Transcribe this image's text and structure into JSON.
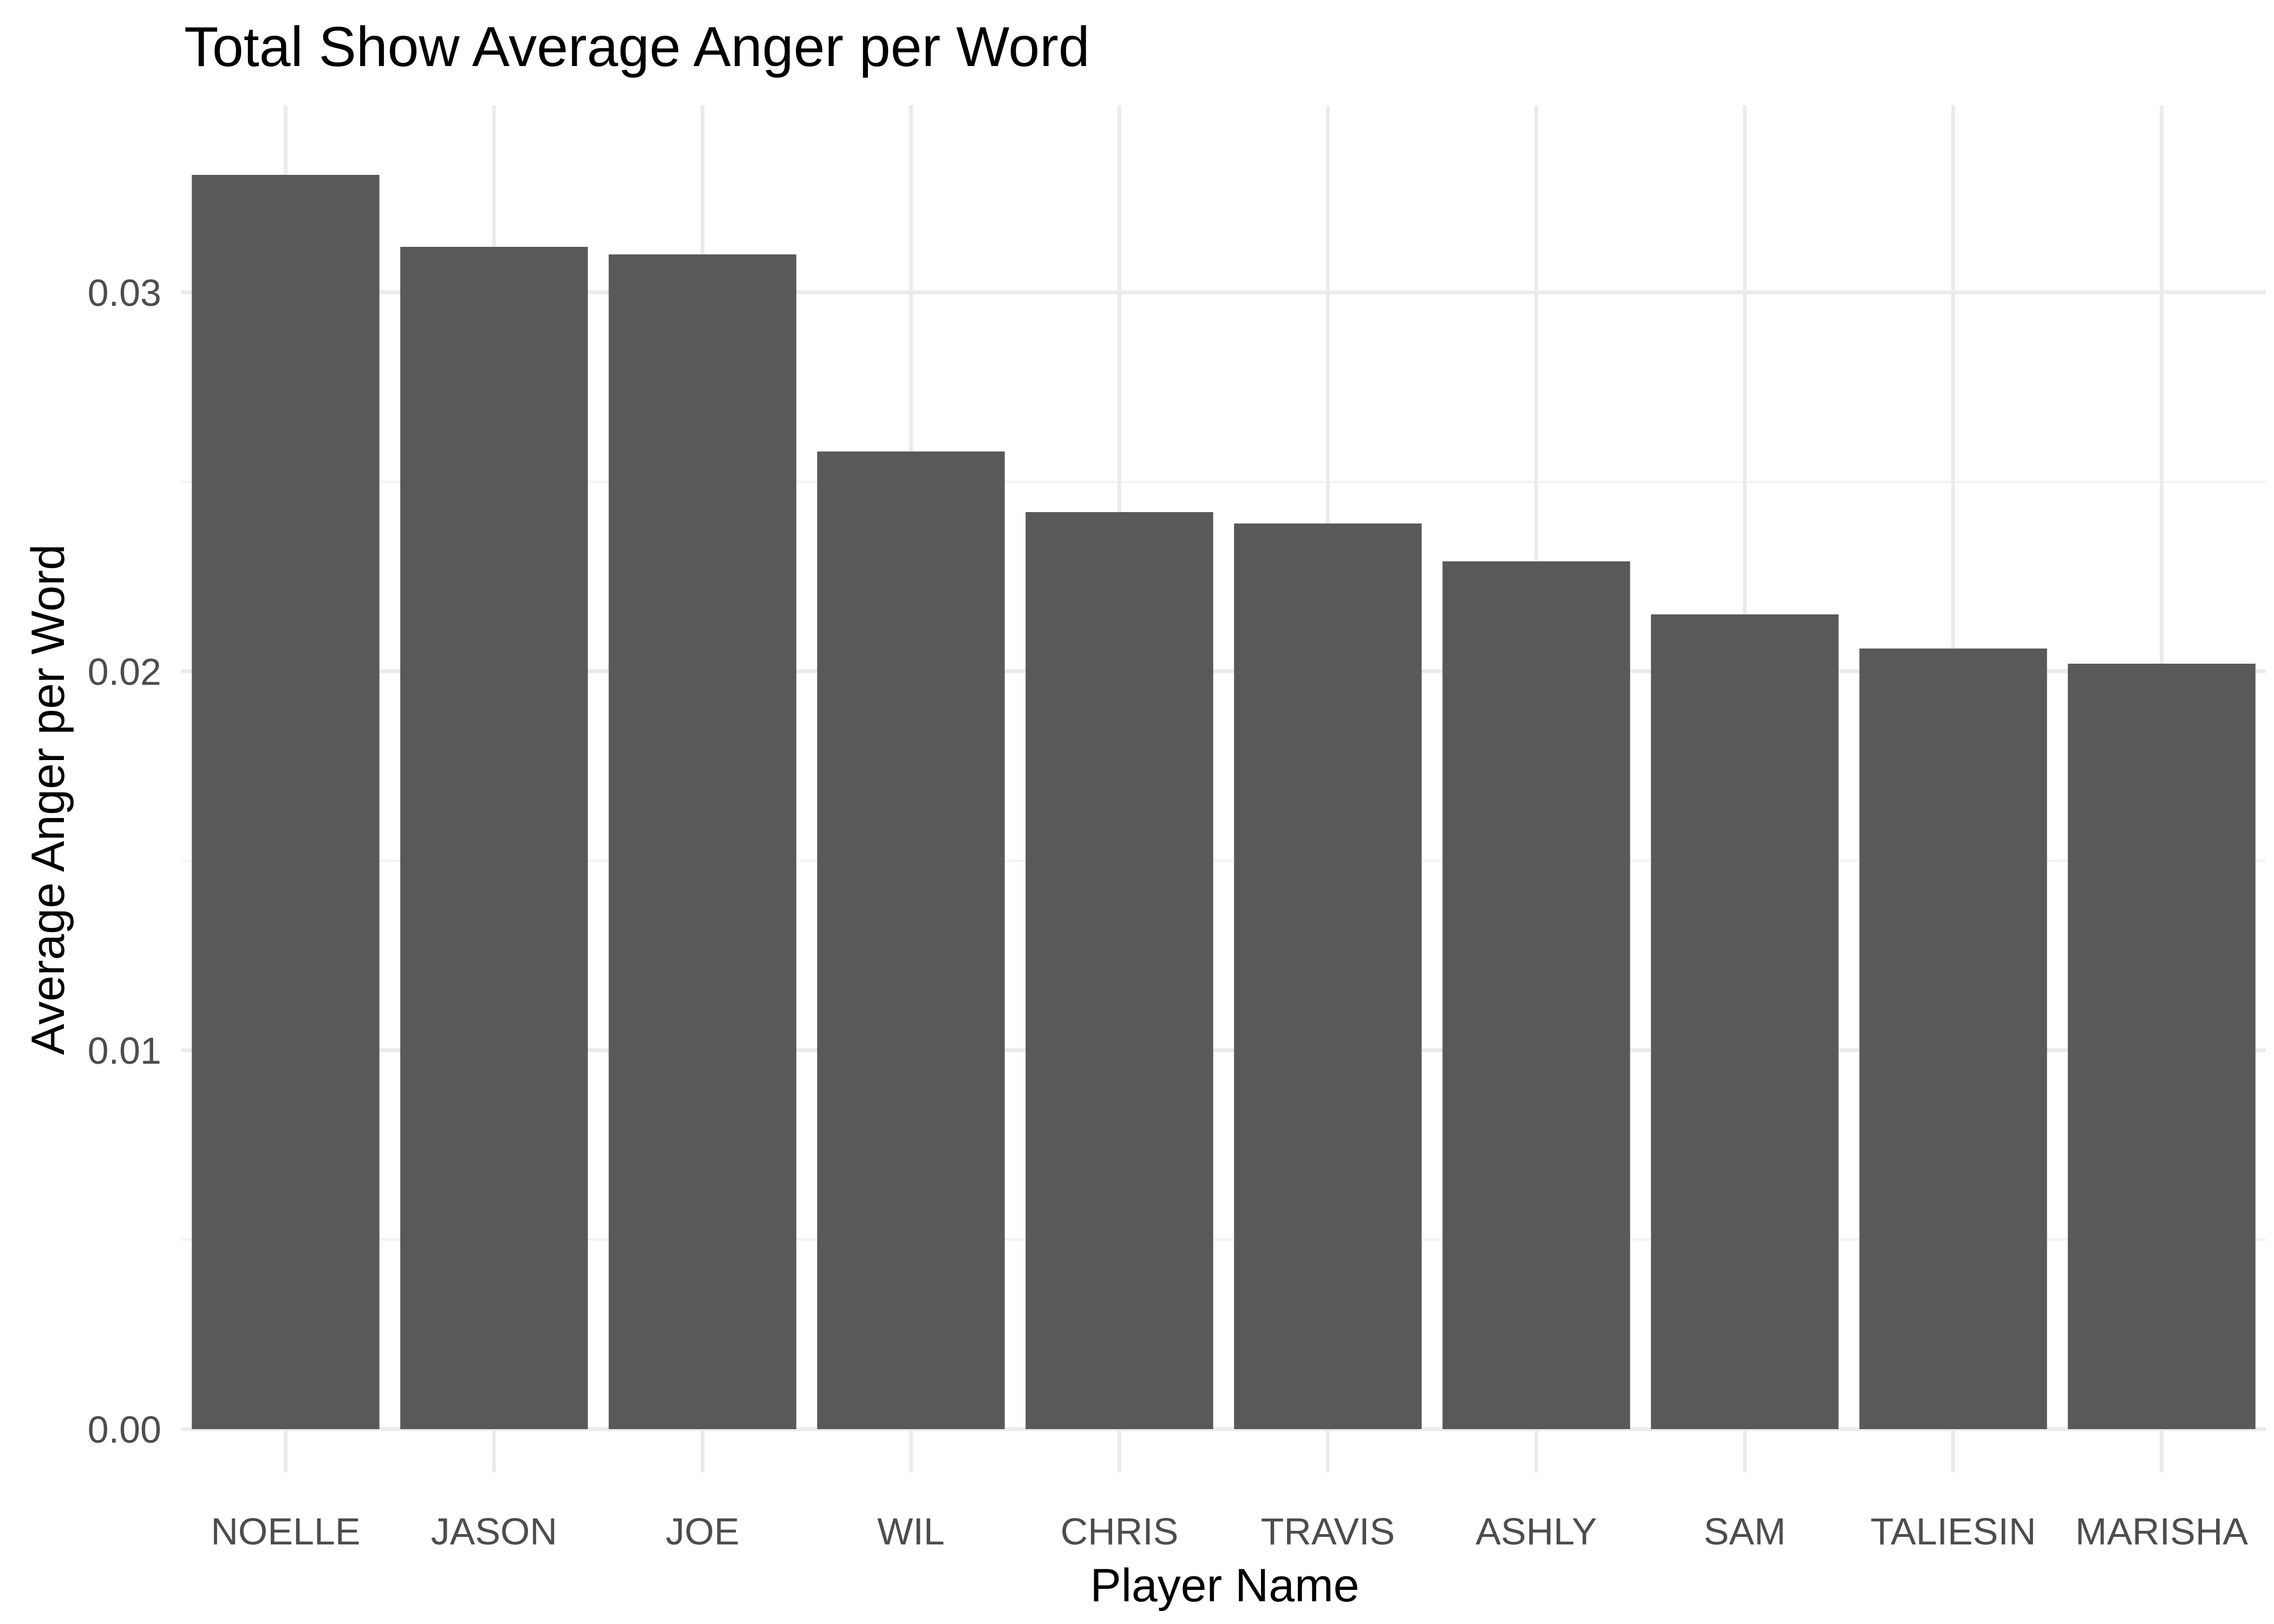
{
  "chart_data": {
    "type": "bar",
    "title": "Total Show Average Anger per Word",
    "xlabel": "Player Name",
    "ylabel": "Average Anger per Word",
    "categories": [
      "NOELLE",
      "JASON",
      "JOE",
      "WIL",
      "CHRIS",
      "TRAVIS",
      "ASHLY",
      "SAM",
      "TALIESIN",
      "MARISHA"
    ],
    "values": [
      0.0331,
      0.0312,
      0.031,
      0.0258,
      0.0242,
      0.0239,
      0.0229,
      0.0215,
      0.0206,
      0.0202
    ],
    "ylim": [
      0,
      0.034
    ],
    "y_ticks": [
      0.0,
      0.01,
      0.02,
      0.03
    ],
    "y_tick_labels": [
      "0.00",
      "0.01",
      "0.02",
      "0.03"
    ],
    "grid": true,
    "colors": {
      "bar": "#595959",
      "grid": "#ebebeb"
    }
  }
}
